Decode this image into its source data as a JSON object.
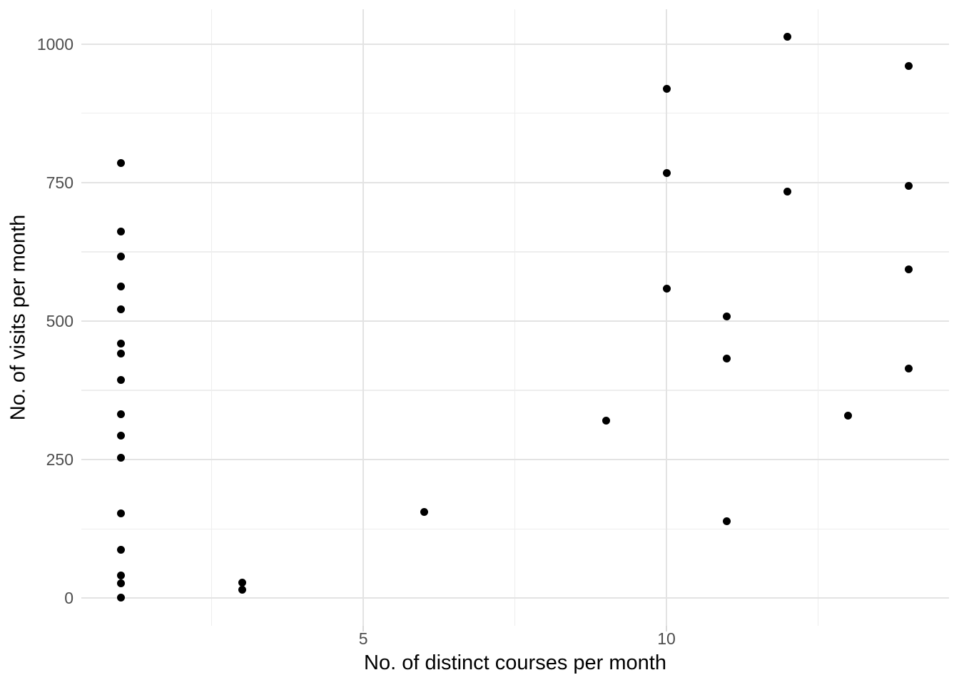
{
  "chart_data": {
    "type": "scatter",
    "title": "",
    "xlabel": "No. of distinct courses per month",
    "ylabel": "No. of visits per month",
    "xlim": [
      0.35,
      14.66
    ],
    "ylim": [
      -49.6,
      1062.6
    ],
    "grid": true,
    "legend": "none",
    "x_major_ticks": [
      {
        "value": 5,
        "label": "5"
      },
      {
        "value": 10,
        "label": "10"
      }
    ],
    "x_minor_ticks": [
      2.5,
      7.5,
      12.5
    ],
    "y_major_ticks": [
      {
        "value": 0,
        "label": "0"
      },
      {
        "value": 250,
        "label": "250"
      },
      {
        "value": 500,
        "label": "500"
      },
      {
        "value": 750,
        "label": "750"
      },
      {
        "value": 1000,
        "label": "1000"
      }
    ],
    "y_minor_ticks": [
      125,
      375,
      625,
      875
    ],
    "points": [
      [
        1,
        785
      ],
      [
        1,
        662
      ],
      [
        1,
        617
      ],
      [
        1,
        562
      ],
      [
        1,
        521
      ],
      [
        1,
        459
      ],
      [
        1,
        442
      ],
      [
        1,
        394
      ],
      [
        1,
        332
      ],
      [
        1,
        293
      ],
      [
        1,
        254
      ],
      [
        1,
        153
      ],
      [
        1,
        88
      ],
      [
        1,
        41
      ],
      [
        1,
        27
      ],
      [
        1,
        1
      ],
      [
        3,
        28
      ],
      [
        3,
        15
      ],
      [
        6,
        156
      ],
      [
        9,
        320
      ],
      [
        10,
        919
      ],
      [
        10,
        767
      ],
      [
        10,
        558
      ],
      [
        11,
        509
      ],
      [
        11,
        432
      ],
      [
        11,
        139
      ],
      [
        12,
        1013
      ],
      [
        12,
        734
      ],
      [
        13,
        330
      ],
      [
        14,
        960
      ],
      [
        14,
        744
      ],
      [
        14,
        594
      ],
      [
        14,
        414
      ]
    ]
  },
  "style": {
    "background": "#ffffff",
    "point_color": "#000000",
    "grid_major_color": "#e3e3e3",
    "grid_minor_color": "#eeeeee",
    "tick_mark_color": "#d9d9d9",
    "tick_label_color": "#4d4d4d",
    "axis_title_color": "#000000"
  }
}
